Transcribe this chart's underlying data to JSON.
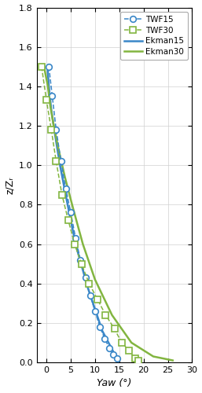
{
  "title": "",
  "xlabel": "Yaw (°)",
  "ylabel": "z/Zᵣ",
  "xlim": [
    -2,
    30
  ],
  "ylim": [
    0,
    1.8
  ],
  "xticks": [
    0,
    5,
    10,
    15,
    20,
    25,
    30
  ],
  "yticks": [
    0,
    0.2,
    0.4,
    0.6,
    0.8,
    1.0,
    1.2,
    1.4,
    1.6,
    1.8
  ],
  "TWF15_x": [
    0.5,
    1.2,
    2.0,
    3.0,
    4.0,
    5.0,
    6.0,
    7.0,
    8.0,
    9.0,
    10.0,
    11.0,
    12.0,
    13.0,
    13.8,
    14.5
  ],
  "TWF15_z": [
    1.5,
    1.35,
    1.18,
    1.02,
    0.88,
    0.76,
    0.63,
    0.52,
    0.43,
    0.34,
    0.26,
    0.18,
    0.12,
    0.07,
    0.04,
    0.02
  ],
  "TWF30_x": [
    -1.0,
    0.0,
    1.0,
    2.0,
    3.2,
    4.5,
    5.8,
    7.2,
    8.8,
    10.5,
    12.2,
    14.0,
    15.5,
    17.0,
    18.2,
    19.0
  ],
  "TWF30_z": [
    1.5,
    1.33,
    1.18,
    1.02,
    0.85,
    0.72,
    0.6,
    0.5,
    0.4,
    0.32,
    0.24,
    0.17,
    0.1,
    0.06,
    0.02,
    0.01
  ],
  "Ekman15_x": [
    0.2,
    0.5,
    1.0,
    1.8,
    2.8,
    4.2,
    6.0,
    8.5,
    11.5,
    14.5
  ],
  "Ekman15_z": [
    1.5,
    1.4,
    1.28,
    1.15,
    1.0,
    0.82,
    0.6,
    0.38,
    0.16,
    0.02
  ],
  "Ekman30_x": [
    -0.5,
    0.3,
    0.8,
    1.5,
    2.5,
    3.8,
    5.5,
    7.5,
    10.0,
    13.5,
    17.5,
    22.0,
    26.0
  ],
  "Ekman30_z": [
    1.5,
    1.4,
    1.3,
    1.2,
    1.08,
    0.94,
    0.78,
    0.6,
    0.42,
    0.24,
    0.1,
    0.03,
    0.01
  ],
  "color_blue": "#3a87c8",
  "color_green": "#82b540",
  "bg_color": "#f5f5f5"
}
